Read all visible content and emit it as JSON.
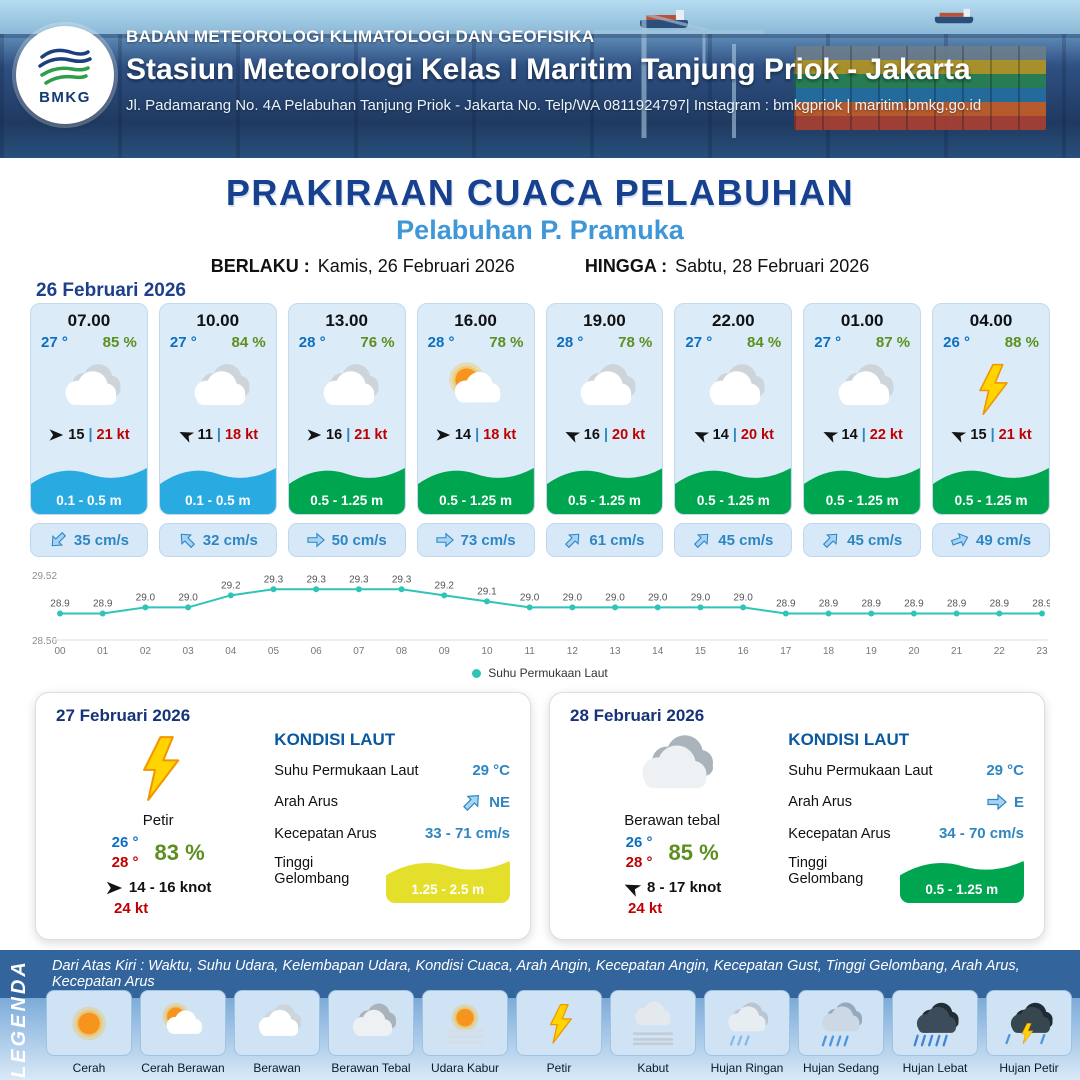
{
  "header": {
    "logo_label": "BMKG",
    "agency": "BADAN METEOROLOGI KLIMATOLOGI DAN GEOFISIKA",
    "station": "Stasiun Meteorologi Kelas I Maritim Tanjung Priok - Jakarta",
    "address": "Jl. Padamarang No. 4A Pelabuhan Tanjung Priok - Jakarta No. Telp/WA 0811924797| Instagram : bmkgpriok | maritim.bmkg.go.id"
  },
  "title": {
    "main": "PRAKIRAAN CUACA PELABUHAN",
    "port": "Pelabuhan P. Pramuka",
    "berlaku_label": "BERLAKU :",
    "berlaku_value": "Kamis, 26 Februari 2026",
    "hingga_label": "HINGGA :",
    "hingga_value": "Sabtu, 28 Februari 2026"
  },
  "forecast_date": "26 Februari 2026",
  "labels": {
    "wind_sep": "|"
  },
  "forecast_cards": [
    {
      "time": "07.00",
      "temp": "27 °",
      "humidity": "85 %",
      "icon": "berawan",
      "wind_dir_deg": 0,
      "wind": "15",
      "gust": "21 kt",
      "wave": "0.1 - 0.5 m",
      "wave_color": "#29abe2",
      "current_dir_deg": 135,
      "current": "35 cm/s"
    },
    {
      "time": "10.00",
      "temp": "27 °",
      "humidity": "84 %",
      "icon": "berawan",
      "wind_dir_deg": 205,
      "wind": "11",
      "gust": "18 kt",
      "wave": "0.1 - 0.5 m",
      "wave_color": "#29abe2",
      "current_dir_deg": -135,
      "current": "32 cm/s"
    },
    {
      "time": "13.00",
      "temp": "28 °",
      "humidity": "76 %",
      "icon": "berawan",
      "wind_dir_deg": 0,
      "wind": "16",
      "gust": "21 kt",
      "wave": "0.5 - 1.25 m",
      "wave_color": "#00a550",
      "current_dir_deg": 0,
      "current": "50 cm/s"
    },
    {
      "time": "16.00",
      "temp": "28 °",
      "humidity": "78 %",
      "icon": "cerah-berawan",
      "wind_dir_deg": 0,
      "wind": "14",
      "gust": "18 kt",
      "wave": "0.5 - 1.25 m",
      "wave_color": "#00a550",
      "current_dir_deg": 0,
      "current": "73 cm/s"
    },
    {
      "time": "19.00",
      "temp": "28 °",
      "humidity": "78 %",
      "icon": "berawan",
      "wind_dir_deg": 205,
      "wind": "16",
      "gust": "20 kt",
      "wave": "0.5 - 1.25 m",
      "wave_color": "#00a550",
      "current_dir_deg": -45,
      "current": "61 cm/s"
    },
    {
      "time": "22.00",
      "temp": "27 °",
      "humidity": "84 %",
      "icon": "berawan",
      "wind_dir_deg": 205,
      "wind": "14",
      "gust": "20 kt",
      "wave": "0.5 - 1.25 m",
      "wave_color": "#00a550",
      "current_dir_deg": -45,
      "current": "45 cm/s"
    },
    {
      "time": "01.00",
      "temp": "27 °",
      "humidity": "87 %",
      "icon": "berawan",
      "wind_dir_deg": 205,
      "wind": "14",
      "gust": "22 kt",
      "wave": "0.5 - 1.25 m",
      "wave_color": "#00a550",
      "current_dir_deg": -45,
      "current": "45 cm/s"
    },
    {
      "time": "04.00",
      "temp": "26 °",
      "humidity": "88 %",
      "icon": "petir",
      "wind_dir_deg": 205,
      "wind": "15",
      "gust": "21 kt",
      "wave": "0.5 - 1.25 m",
      "wave_color": "#00a550",
      "current_dir_deg": -20,
      "current": "49 cm/s"
    }
  ],
  "chart_data": {
    "type": "line",
    "x": [
      "00",
      "01",
      "02",
      "03",
      "04",
      "05",
      "06",
      "07",
      "08",
      "09",
      "10",
      "11",
      "12",
      "13",
      "14",
      "15",
      "16",
      "17",
      "18",
      "19",
      "20",
      "21",
      "22",
      "23"
    ],
    "series": [
      {
        "name": "Suhu Permukaan Laut",
        "values": [
          28.9,
          28.9,
          29.0,
          29.0,
          29.2,
          29.3,
          29.3,
          29.3,
          29.3,
          29.2,
          29.1,
          29.0,
          29.0,
          29.0,
          29.0,
          29.0,
          29.0,
          28.9,
          28.9,
          28.9,
          28.9,
          28.9,
          28.9,
          28.9
        ]
      }
    ],
    "ylim": [
      28.56,
      29.52
    ],
    "y_ticks": [
      "29.52",
      "28.56"
    ],
    "line_color": "#2ec4b6",
    "legend": "Suhu Permukaan Laut",
    "legend_position": "bottom",
    "grid": false
  },
  "daily": [
    {
      "date": "27 Februari 2026",
      "icon": "petir",
      "condition": "Petir",
      "temp_min": "26 °",
      "temp_max": "28 °",
      "humidity": "83 %",
      "wind_dir_deg": 0,
      "wind_range": "14 - 16 knot",
      "gust": "24 kt",
      "sea": {
        "title": "KONDISI LAUT",
        "sst_label": "Suhu Permukaan Laut",
        "sst": "29 °C",
        "arah_label": "Arah Arus",
        "arah_deg": -45,
        "arah": "NE",
        "kecepatan_label": "Kecepatan Arus",
        "kecepatan": "33  - 71 cm/s",
        "gelombang_label": "Tinggi Gelombang",
        "gelombang": "1.25 - 2.5 m",
        "gelombang_color": "#e3df2a"
      }
    },
    {
      "date": "28 Februari 2026",
      "icon": "berawan-tebal",
      "condition": "Berawan tebal",
      "temp_min": "26 °",
      "temp_max": "28 °",
      "humidity": "85 %",
      "wind_dir_deg": 205,
      "wind_range": "8  - 17 knot",
      "gust": "24 kt",
      "sea": {
        "title": "KONDISI LAUT",
        "sst_label": "Suhu Permukaan Laut",
        "sst": "29 °C",
        "arah_label": "Arah Arus",
        "arah_deg": 0,
        "arah": "E",
        "kecepatan_label": "Kecepatan Arus",
        "kecepatan": "34 - 70 cm/s",
        "gelombang_label": "Tinggi Gelombang",
        "gelombang": "0.5 - 1.25 m",
        "gelombang_color": "#00a550"
      }
    }
  ],
  "legend": {
    "title": "LEGENDA",
    "description": "Dari Atas Kiri : Waktu, Suhu Udara, Kelembapan Udara, Kondisi Cuaca, Arah Angin, Kecepatan Angin, Kecepatan Gust, Tinggi Gelombang, Arah Arus, Kecepatan Arus",
    "items": [
      {
        "label": "Cerah",
        "icon": "cerah"
      },
      {
        "label": "Cerah Berawan",
        "icon": "cerah-berawan"
      },
      {
        "label": "Berawan",
        "icon": "berawan"
      },
      {
        "label": "Berawan Tebal",
        "icon": "berawan-tebal"
      },
      {
        "label": "Udara Kabur",
        "icon": "udara-kabur"
      },
      {
        "label": "Petir",
        "icon": "petir"
      },
      {
        "label": "Kabut",
        "icon": "kabut"
      },
      {
        "label": "Hujan Ringan",
        "icon": "hujan-ringan"
      },
      {
        "label": "Hujan Sedang",
        "icon": "hujan-sedang"
      },
      {
        "label": "Hujan Lebat",
        "icon": "hujan-lebat"
      },
      {
        "label": "Hujan Petir",
        "icon": "hujan-petir"
      }
    ]
  }
}
